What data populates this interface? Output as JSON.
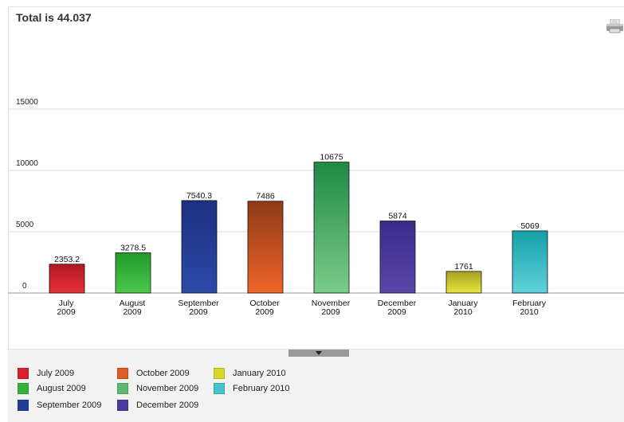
{
  "header": {
    "title": "Total is 44.037"
  },
  "toolbar": {
    "print_icon": "print-icon"
  },
  "chart_data": {
    "type": "bar",
    "title": "Total is 44.037",
    "categories": [
      [
        "July",
        "2009"
      ],
      [
        "August",
        "2009"
      ],
      [
        "September",
        "2009"
      ],
      [
        "October",
        "2009"
      ],
      [
        "November",
        "2009"
      ],
      [
        "December",
        "2009"
      ],
      [
        "January",
        "2010"
      ],
      [
        "February",
        "2010"
      ]
    ],
    "values": [
      2353.2,
      3278.5,
      7540.3,
      7486,
      10675,
      5874,
      1761,
      5069
    ],
    "value_labels": [
      "2353.2",
      "3278.5",
      "7540.3",
      "7486",
      "10675",
      "5874",
      "1761",
      "5069"
    ],
    "colors": [
      [
        "#e8303a",
        "#b01822"
      ],
      [
        "#4cc84c",
        "#229a2a"
      ],
      [
        "#2b4aa8",
        "#1d2f80"
      ],
      [
        "#f06428",
        "#8e3a18"
      ],
      [
        "#7ccc8a",
        "#1e8a44"
      ],
      [
        "#5a48a8",
        "#3a2a8c"
      ],
      [
        "#e8e840",
        "#a8a020"
      ],
      [
        "#62d2dc",
        "#12a0a8"
      ]
    ],
    "ylim": [
      0,
      20000
    ],
    "yticks": [
      0,
      5000,
      10000,
      15000
    ],
    "ytick_labels": [
      "0",
      "5000",
      "10000",
      "15000"
    ],
    "grid": true,
    "legend_position": "bottom",
    "legend": [
      {
        "label": "July 2009",
        "color": "#d8202e"
      },
      {
        "label": "August 2009",
        "color": "#36b03a"
      },
      {
        "label": "September 2009",
        "color": "#223c98"
      },
      {
        "label": "October 2009",
        "color": "#e05a26"
      },
      {
        "label": "November 2009",
        "color": "#5cb870"
      },
      {
        "label": "December 2009",
        "color": "#4a3a9c"
      },
      {
        "label": "January 2010",
        "color": "#d6d62c"
      },
      {
        "label": "February 2010",
        "color": "#48c2cc"
      }
    ]
  }
}
